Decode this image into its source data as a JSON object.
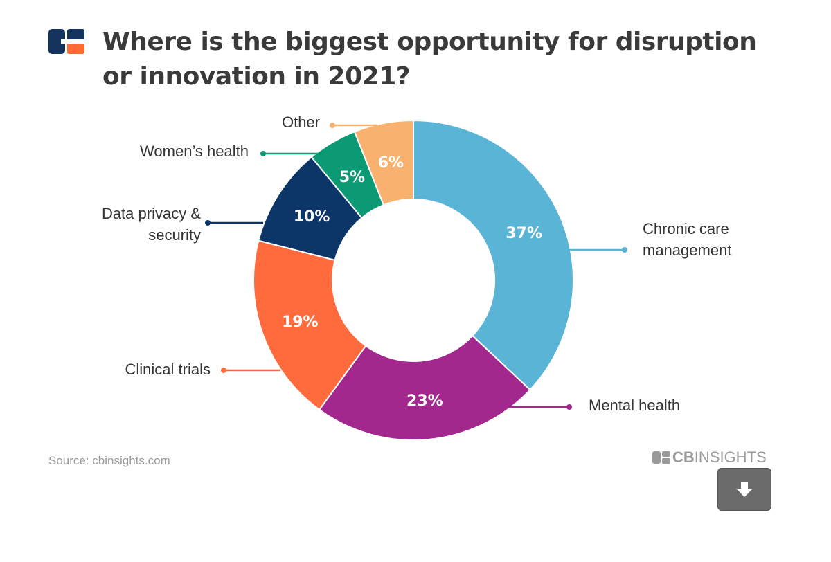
{
  "title": "Where is the biggest opportunity for disruption or innovation in 2021?",
  "source": "Source: cbinsights.com",
  "brand": {
    "bold": "CB",
    "rest": "INSIGHTS"
  },
  "download_icon": "download-arrow-icon",
  "colors": {
    "logo_navy": "#15345d",
    "logo_orange": "#ff6b35",
    "title": "#3a3a3a"
  },
  "chart_data": {
    "type": "pie",
    "style": "donut",
    "title": "Where is the biggest opportunity for disruption or innovation in 2021?",
    "unit": "%",
    "slices": [
      {
        "label": "Chronic care management",
        "label_lines": [
          "Chronic care",
          "management"
        ],
        "value": 37,
        "display": "37%",
        "color": "#5ab4d6"
      },
      {
        "label": "Mental health",
        "label_lines": [
          "Mental health"
        ],
        "value": 23,
        "display": "23%",
        "color": "#a2288e"
      },
      {
        "label": "Clinical trials",
        "label_lines": [
          "Clinical trials"
        ],
        "value": 19,
        "display": "19%",
        "color": "#ff6b3d"
      },
      {
        "label": "Data privacy & security",
        "label_lines": [
          "Data privacy &",
          "security"
        ],
        "value": 10,
        "display": "10%",
        "color": "#0c3668"
      },
      {
        "label": "Women’s health",
        "label_lines": [
          "Women’s health"
        ],
        "value": 5,
        "display": "5%",
        "color": "#0c9a74"
      },
      {
        "label": "Other",
        "label_lines": [
          "Other"
        ],
        "value": 6,
        "display": "6%",
        "color": "#f9b16f"
      }
    ]
  }
}
